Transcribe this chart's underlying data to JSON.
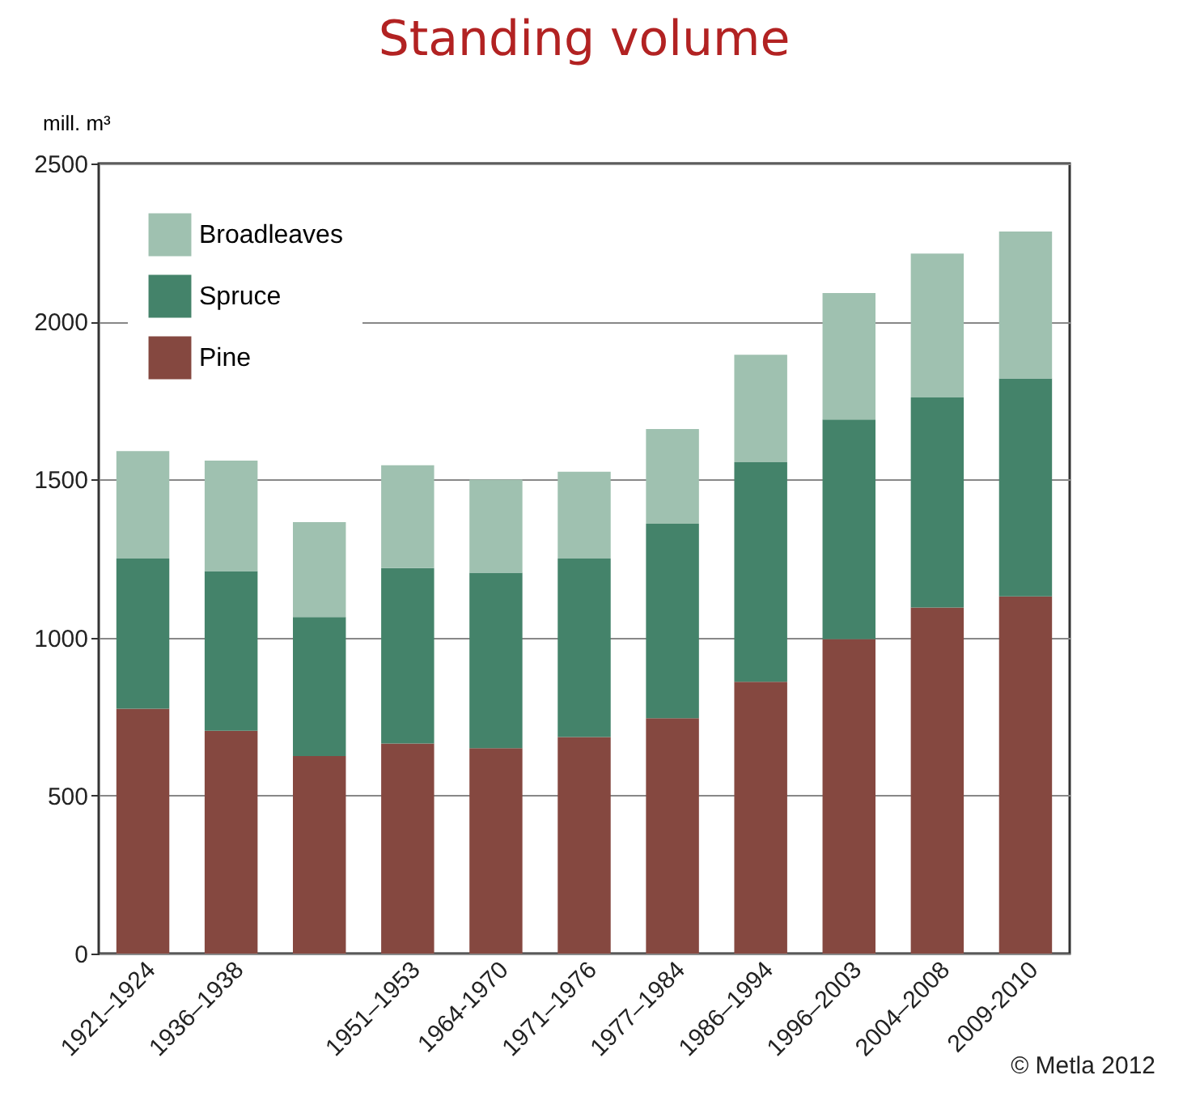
{
  "chart_data": {
    "type": "bar",
    "title": "Standing volume",
    "ylabel": "mill. m³",
    "categories": [
      "1921–1924",
      "1936–1938",
      null,
      "1951–1953",
      "1964-1970",
      "1971–1976",
      "1977–1984",
      "1986–1994",
      "1996–2003",
      "2004–2008",
      "2009-2010"
    ],
    "series": [
      {
        "name": "Pine",
        "color": "#854840",
        "values": [
          775,
          705,
          625,
          665,
          650,
          685,
          745,
          860,
          995,
          1095,
          1130
        ]
      },
      {
        "name": "Spruce",
        "color": "#44836a",
        "values": [
          475,
          505,
          440,
          555,
          555,
          565,
          615,
          695,
          695,
          665,
          690
        ]
      },
      {
        "name": "Broadleaves",
        "color": "#9fc1b0",
        "values": [
          340,
          350,
          300,
          325,
          295,
          275,
          300,
          340,
          400,
          455,
          465
        ]
      }
    ],
    "stacked": true,
    "ylim": [
      0,
      2500
    ],
    "yticks": [
      0,
      500,
      1000,
      1500,
      2000,
      2500
    ],
    "grid": "y",
    "legend": "top left",
    "annotations": [
      "© Metla 2012"
    ]
  }
}
